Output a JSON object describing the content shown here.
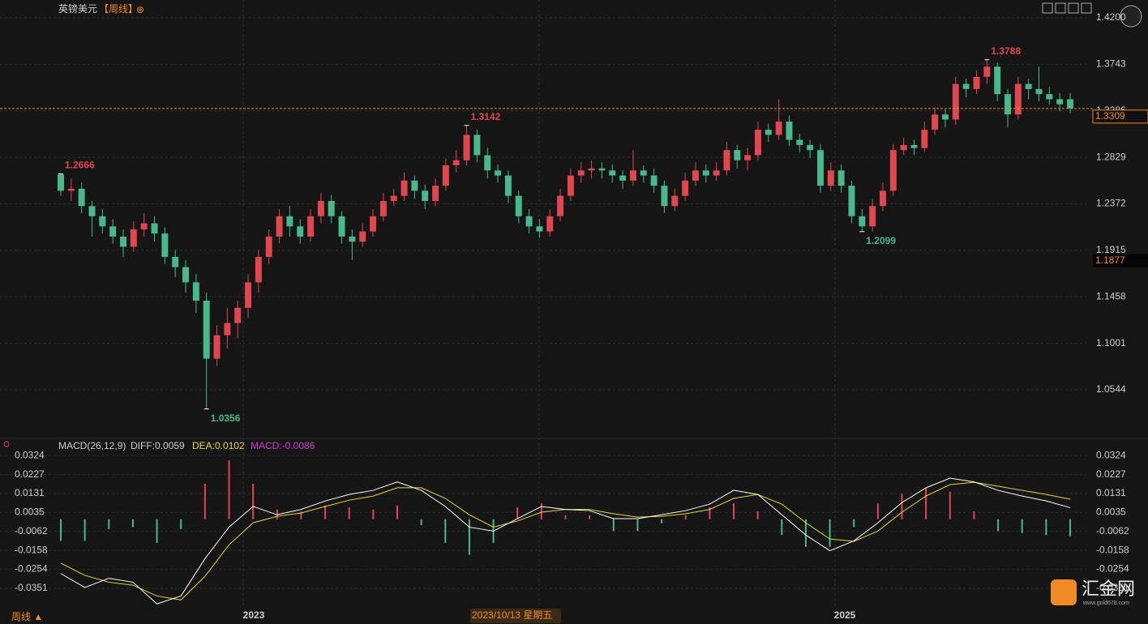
{
  "chart_data": {
    "type": "candlestick",
    "title": "英镑美元",
    "period": "【周线】",
    "add_icon": "⊕",
    "up_color": "#e0474e",
    "down_color": "#48b98a",
    "ylim": [
      1.0074,
      1.4375
    ],
    "yticks": [
      {
        "value": 1.42,
        "label": "1.4200"
      },
      {
        "value": 1.3743,
        "label": "1.3743"
      },
      {
        "value": 1.3286,
        "label": "1.3286"
      },
      {
        "value": 1.2829,
        "label": "1.2829"
      },
      {
        "value": 1.2372,
        "label": "1.2372"
      },
      {
        "value": 1.1915,
        "label": "1.1915"
      },
      {
        "value": 1.1458,
        "label": "1.1458"
      },
      {
        "value": 1.1001,
        "label": "1.1001"
      },
      {
        "value": 1.0544,
        "label": "1.0544"
      }
    ],
    "last_price": {
      "value": 1.3309,
      "label": "1.3309"
    },
    "marker_price": {
      "value": 1.1877,
      "label": "1.1877"
    },
    "annotations": [
      {
        "value": 1.2666,
        "label": "1.2666"
      },
      {
        "value": 1.3142,
        "label": "1.3142"
      },
      {
        "value": 1.0356,
        "label": "1.0356"
      },
      {
        "value": 1.2099,
        "label": "1.2099"
      },
      {
        "value": 1.3788,
        "label": "1.3788"
      }
    ],
    "xlabels": [
      "2023",
      "2025"
    ],
    "crosshair_label": "2023/10/13 星期五",
    "period_footer": "周线 ▲",
    "ohlc": [
      [
        1.266,
        1.2666,
        1.245,
        1.25
      ],
      [
        1.25,
        1.262,
        1.24,
        1.252
      ],
      [
        1.252,
        1.258,
        1.228,
        1.235
      ],
      [
        1.235,
        1.24,
        1.205,
        1.225
      ],
      [
        1.225,
        1.232,
        1.208,
        1.215
      ],
      [
        1.215,
        1.222,
        1.198,
        1.205
      ],
      [
        1.205,
        1.212,
        1.185,
        1.195
      ],
      [
        1.195,
        1.22,
        1.19,
        1.212
      ],
      [
        1.212,
        1.228,
        1.205,
        1.218
      ],
      [
        1.218,
        1.225,
        1.2,
        1.208
      ],
      [
        1.208,
        1.214,
        1.178,
        1.185
      ],
      [
        1.185,
        1.192,
        1.165,
        1.175
      ],
      [
        1.175,
        1.182,
        1.15,
        1.16
      ],
      [
        1.16,
        1.168,
        1.13,
        1.142
      ],
      [
        1.142,
        1.15,
        1.0356,
        1.085
      ],
      [
        1.085,
        1.118,
        1.078,
        1.108
      ],
      [
        1.108,
        1.135,
        1.095,
        1.12
      ],
      [
        1.12,
        1.142,
        1.105,
        1.135
      ],
      [
        1.135,
        1.168,
        1.125,
        1.16
      ],
      [
        1.16,
        1.192,
        1.15,
        1.185
      ],
      [
        1.185,
        1.212,
        1.178,
        1.205
      ],
      [
        1.205,
        1.232,
        1.198,
        1.225
      ],
      [
        1.225,
        1.235,
        1.205,
        1.215
      ],
      [
        1.215,
        1.222,
        1.198,
        1.205
      ],
      [
        1.205,
        1.232,
        1.2,
        1.225
      ],
      [
        1.225,
        1.248,
        1.218,
        1.24
      ],
      [
        1.24,
        1.246,
        1.218,
        1.225
      ],
      [
        1.225,
        1.23,
        1.198,
        1.205
      ],
      [
        1.205,
        1.212,
        1.182,
        1.2
      ],
      [
        1.2,
        1.218,
        1.195,
        1.21
      ],
      [
        1.21,
        1.232,
        1.205,
        1.225
      ],
      [
        1.225,
        1.248,
        1.22,
        1.24
      ],
      [
        1.24,
        1.252,
        1.235,
        1.245
      ],
      [
        1.245,
        1.268,
        1.24,
        1.26
      ],
      [
        1.26,
        1.265,
        1.242,
        1.25
      ],
      [
        1.25,
        1.256,
        1.232,
        1.24
      ],
      [
        1.24,
        1.262,
        1.235,
        1.255
      ],
      [
        1.255,
        1.282,
        1.25,
        1.275
      ],
      [
        1.275,
        1.29,
        1.268,
        1.28
      ],
      [
        1.28,
        1.3142,
        1.275,
        1.305
      ],
      [
        1.305,
        1.31,
        1.278,
        1.285
      ],
      [
        1.285,
        1.292,
        1.262,
        1.27
      ],
      [
        1.27,
        1.276,
        1.258,
        1.265
      ],
      [
        1.265,
        1.27,
        1.238,
        1.245
      ],
      [
        1.245,
        1.25,
        1.218,
        1.225
      ],
      [
        1.225,
        1.232,
        1.208,
        1.215
      ],
      [
        1.215,
        1.222,
        1.204,
        1.21
      ],
      [
        1.21,
        1.232,
        1.205,
        1.225
      ],
      [
        1.225,
        1.252,
        1.22,
        1.245
      ],
      [
        1.245,
        1.272,
        1.24,
        1.265
      ],
      [
        1.265,
        1.278,
        1.258,
        1.27
      ],
      [
        1.27,
        1.28,
        1.262,
        1.272
      ],
      [
        1.272,
        1.278,
        1.262,
        1.27
      ],
      [
        1.27,
        1.276,
        1.258,
        1.265
      ],
      [
        1.265,
        1.27,
        1.252,
        1.26
      ],
      [
        1.26,
        1.29,
        1.255,
        1.27
      ],
      [
        1.27,
        1.275,
        1.258,
        1.265
      ],
      [
        1.265,
        1.272,
        1.248,
        1.255
      ],
      [
        1.255,
        1.26,
        1.228,
        1.235
      ],
      [
        1.235,
        1.252,
        1.23,
        1.245
      ],
      [
        1.245,
        1.268,
        1.24,
        1.26
      ],
      [
        1.26,
        1.278,
        1.255,
        1.27
      ],
      [
        1.27,
        1.276,
        1.258,
        1.265
      ],
      [
        1.265,
        1.278,
        1.26,
        1.27
      ],
      [
        1.27,
        1.298,
        1.265,
        1.29
      ],
      [
        1.29,
        1.295,
        1.272,
        1.28
      ],
      [
        1.28,
        1.292,
        1.27,
        1.285
      ],
      [
        1.285,
        1.318,
        1.28,
        1.31
      ],
      [
        1.31,
        1.316,
        1.298,
        1.305
      ],
      [
        1.305,
        1.34,
        1.3,
        1.318
      ],
      [
        1.318,
        1.324,
        1.294,
        1.3
      ],
      [
        1.3,
        1.306,
        1.288,
        1.295
      ],
      [
        1.295,
        1.3,
        1.282,
        1.29
      ],
      [
        1.29,
        1.296,
        1.248,
        1.255
      ],
      [
        1.255,
        1.278,
        1.25,
        1.27
      ],
      [
        1.27,
        1.276,
        1.248,
        1.255
      ],
      [
        1.255,
        1.26,
        1.218,
        1.225
      ],
      [
        1.225,
        1.232,
        1.2099,
        1.215
      ],
      [
        1.215,
        1.242,
        1.21,
        1.235
      ],
      [
        1.235,
        1.258,
        1.23,
        1.25
      ],
      [
        1.25,
        1.296,
        1.245,
        1.29
      ],
      [
        1.29,
        1.302,
        1.285,
        1.295
      ],
      [
        1.295,
        1.3,
        1.285,
        1.292
      ],
      [
        1.292,
        1.318,
        1.288,
        1.31
      ],
      [
        1.31,
        1.332,
        1.305,
        1.325
      ],
      [
        1.325,
        1.33,
        1.312,
        1.32
      ],
      [
        1.32,
        1.362,
        1.315,
        1.355
      ],
      [
        1.355,
        1.36,
        1.342,
        1.35
      ],
      [
        1.35,
        1.368,
        1.345,
        1.362
      ],
      [
        1.362,
        1.3788,
        1.355,
        1.372
      ],
      [
        1.372,
        1.376,
        1.338,
        1.345
      ],
      [
        1.345,
        1.35,
        1.312,
        1.325
      ],
      [
        1.325,
        1.362,
        1.32,
        1.355
      ],
      [
        1.355,
        1.36,
        1.34,
        1.35
      ],
      [
        1.35,
        1.372,
        1.338,
        1.345
      ],
      [
        1.345,
        1.352,
        1.335,
        1.34
      ],
      [
        1.34,
        1.346,
        1.328,
        1.335
      ],
      [
        1.34,
        1.346,
        1.326,
        1.3309
      ]
    ],
    "macd": {
      "title": "MACD(26,12,9)",
      "diff_label": "DIFF:0.0059",
      "dea_label": "DEA:0.0102",
      "macd_label": "MACD:-0.0086",
      "diff_color": "#ffffff",
      "dea_color": "#e6d93a",
      "macd_color": "#d63ad6",
      "ylim": [
        -0.045,
        0.0382
      ],
      "yticks": [
        0.0324,
        0.0227,
        0.0131,
        {
          "value": 0.0035,
          "label": "0.0035"
        },
        -0.0062,
        -0.0158,
        -0.0254,
        -0.0351
      ],
      "diff": [
        -0.0276,
        -0.0347,
        -0.03,
        -0.032,
        -0.043,
        -0.039,
        -0.02,
        -0.004,
        0.0065,
        0.0023,
        0.005,
        0.0093,
        0.0126,
        0.0147,
        0.019,
        0.0147,
        0.0065,
        -0.004,
        -0.006,
        0.0003,
        0.0065,
        0.005,
        0.0044,
        0.0003,
        0.0003,
        0.0023,
        0.0044,
        0.0077,
        0.0147,
        0.0126,
        0.0023,
        -0.008,
        -0.016,
        -0.011,
        -0.0018,
        0.0085,
        0.016,
        0.0209,
        0.019,
        0.0147,
        0.0118,
        0.0093,
        0.0059
      ],
      "dea": [
        -0.0223,
        -0.0285,
        -0.032,
        -0.0335,
        -0.039,
        -0.041,
        -0.029,
        -0.013,
        -0.0018,
        0.0015,
        0.0032,
        0.0065,
        0.0097,
        0.0118,
        0.016,
        0.016,
        0.0106,
        0.0023,
        -0.004,
        -0.0009,
        0.0036,
        0.005,
        0.005,
        0.0028,
        0.0011,
        0.0015,
        0.0028,
        0.005,
        0.0106,
        0.0126,
        0.0077,
        -0.0018,
        -0.01,
        -0.0112,
        -0.006,
        0.0036,
        0.0118,
        0.0176,
        0.0188,
        0.0168,
        0.0147,
        0.0126,
        0.0102
      ],
      "hist": [
        -0.011,
        -0.011,
        -0.005,
        -0.004,
        -0.012,
        -0.005,
        0.018,
        0.03,
        0.018,
        0.005,
        0.004,
        0.007,
        0.006,
        0.005,
        0.007,
        -0.003,
        -0.012,
        -0.018,
        -0.012,
        0.006,
        0.008,
        0.002,
        0.002,
        -0.006,
        -0.006,
        -0.002,
        0.002,
        0.006,
        0.008,
        0.004,
        -0.008,
        -0.014,
        -0.014,
        -0.004,
        0.008,
        0.013,
        0.016,
        0.014,
        0.004,
        -0.006,
        -0.007,
        -0.008,
        -0.0086
      ]
    },
    "logo": "汇金网",
    "logo_url": "www.gold678.com"
  }
}
